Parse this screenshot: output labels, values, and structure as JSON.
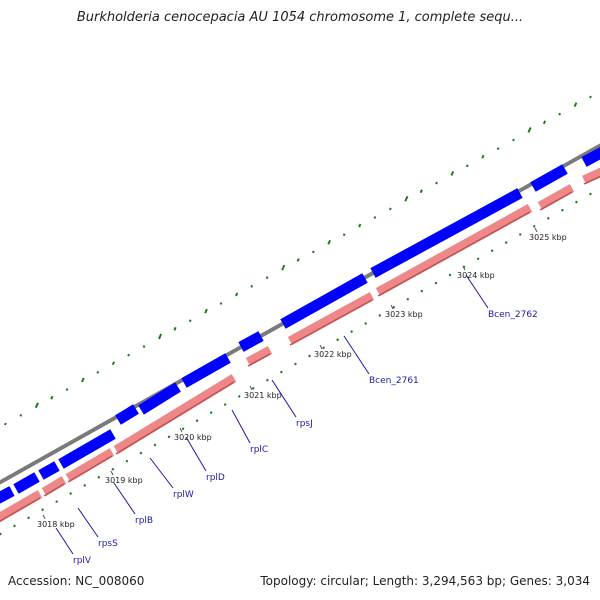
{
  "title": "Burkholderia cenocepacia AU 1054 chromosome 1, complete sequ...",
  "footer": {
    "accession": "Accession: NC_008060",
    "summary": "Topology: circular; Length: 3,294,563 bp; Genes: 3,034"
  },
  "colors": {
    "backbone": "#7a7a7a",
    "forward_feature": "#0000ff",
    "reverse_feature": "#ee8888",
    "gc_skew": "#1e7a1e",
    "label": "#1a1aa8",
    "tick_label": "#222222"
  },
  "scale_labels": [
    "3018 kbp",
    "3019 kbp",
    "3020 kbp",
    "3021 kbp",
    "3022 kbp",
    "3023 kbp",
    "3024 kbp",
    "3025 kbp"
  ],
  "gene_labels": [
    "rplV",
    "rpsS",
    "rplB",
    "rplW",
    "rplD",
    "rplC",
    "rpsJ",
    "Bcen_2761",
    "Bcen_2762"
  ]
}
